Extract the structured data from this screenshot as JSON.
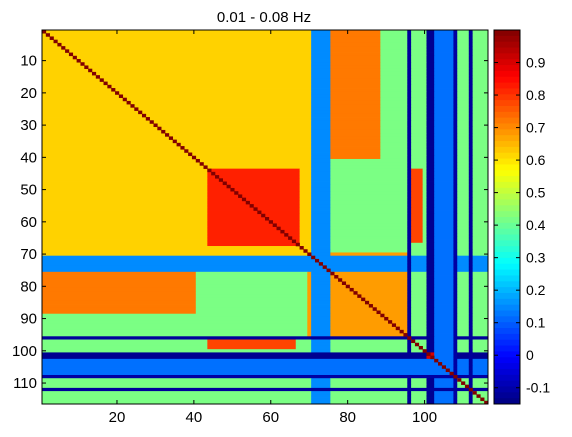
{
  "chart_data": {
    "type": "heatmap",
    "title": "0.01 - 0.08 Hz",
    "xlabel": "",
    "ylabel": "",
    "n": 116,
    "x_ticks": [
      20,
      40,
      60,
      80,
      100
    ],
    "y_ticks": [
      10,
      20,
      30,
      40,
      50,
      60,
      70,
      80,
      90,
      100,
      110
    ],
    "colorbar": {
      "range": [
        -0.15,
        1.0
      ],
      "ticks": [
        0.9,
        0.8,
        0.7,
        0.6,
        0.5,
        0.4,
        0.3,
        0.2,
        0.1,
        0,
        -0.1
      ],
      "tick_labels": [
        "0.9",
        "0.8",
        "0.7",
        "0.6",
        "0.5",
        "0.4",
        "0.3",
        "0.2",
        "0.1",
        "0",
        "-0.1"
      ],
      "colormap": "jet"
    },
    "diagonal_value": 1.0,
    "blocks": [
      {
        "rows": [
          1,
          70
        ],
        "cols": [
          1,
          70
        ],
        "value": 0.62
      },
      {
        "rows": [
          44,
          67
        ],
        "cols": [
          44,
          67
        ],
        "value": 0.82
      },
      {
        "rows": [
          70,
          95
        ],
        "cols": [
          70,
          95
        ],
        "value": 0.68
      },
      {
        "rows": [
          1,
          40
        ],
        "cols": [
          76,
          88
        ],
        "value": 0.72
      },
      {
        "rows": [
          96,
          99
        ],
        "cols": [
          44,
          66
        ],
        "value": 0.78
      },
      {
        "rows": [
          1,
          116
        ],
        "cols": [
          71,
          75
        ],
        "value": 0.15
      },
      {
        "rows": [
          1,
          116
        ],
        "cols": [
          96,
          96
        ],
        "value": -0.12
      },
      {
        "rows": [
          1,
          116
        ],
        "cols": [
          101,
          103
        ],
        "value": -0.13
      },
      {
        "rows": [
          1,
          116
        ],
        "cols": [
          108,
          108
        ],
        "value": -0.11
      },
      {
        "rows": [
          1,
          116
        ],
        "cols": [
          112,
          112
        ],
        "value": -0.12
      },
      {
        "rows": [
          72,
          72
        ],
        "cols": [
          1,
          116
        ],
        "value": 0.15
      },
      {
        "rows": [
          96,
          96
        ],
        "cols": [
          1,
          116
        ],
        "value": -0.12
      },
      {
        "rows": [
          101,
          102
        ],
        "cols": [
          1,
          116
        ],
        "value": -0.13
      },
      {
        "rows": [
          103,
          107
        ],
        "cols": [
          1,
          116
        ],
        "value": 0.12
      },
      {
        "rows": [
          108,
          108
        ],
        "cols": [
          1,
          116
        ],
        "value": -0.11
      },
      {
        "rows": [
          112,
          112
        ],
        "cols": [
          1,
          116
        ],
        "value": -0.12
      },
      {
        "rows": [
          101,
          102
        ],
        "cols": [
          101,
          102
        ],
        "value": 0.9
      }
    ],
    "background_value": 0.42
  }
}
